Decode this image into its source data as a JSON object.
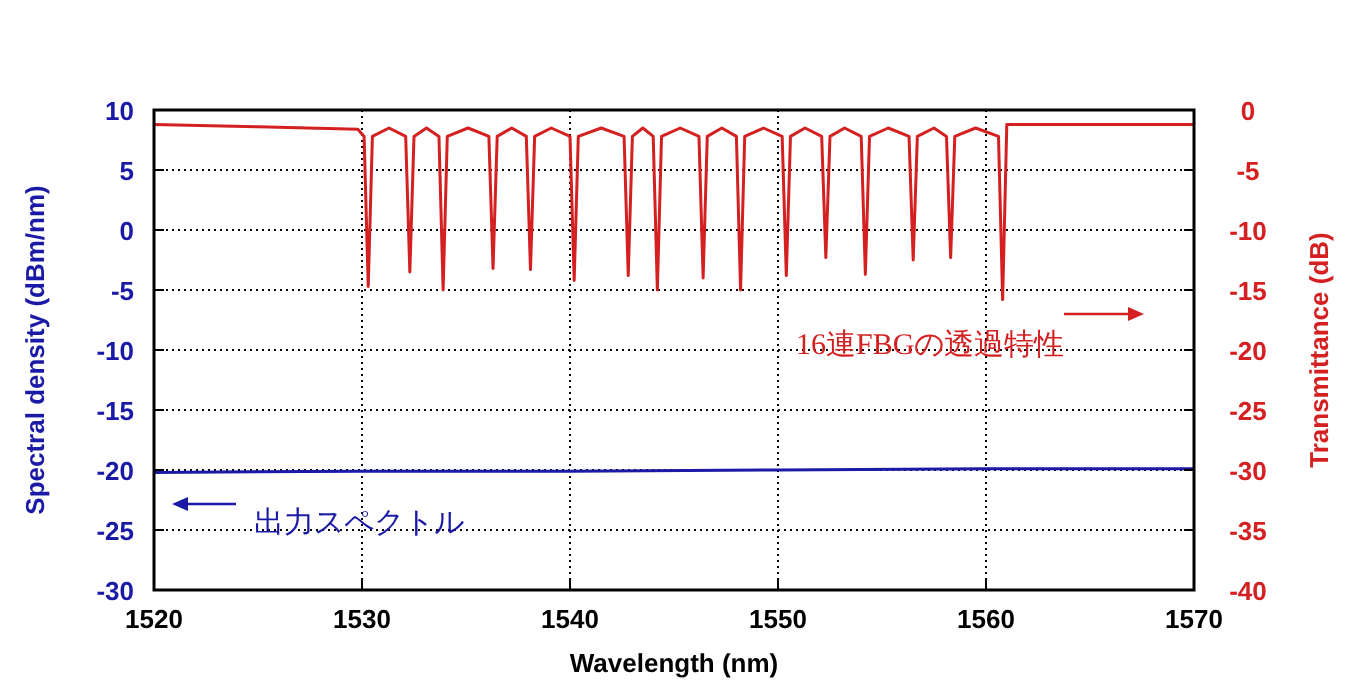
{
  "chart_data": {
    "type": "line",
    "xlabel": "Wavelength (nm)",
    "ylabel": "Spectral density (dBm/nm)",
    "y2label": "Transmittance (dB)",
    "xlim": [
      1520,
      1570
    ],
    "xticks": [
      1520,
      1530,
      1540,
      1550,
      1560,
      1570
    ],
    "ylim": [
      -30,
      10
    ],
    "yticks": [
      -30,
      -25,
      -20,
      -15,
      -10,
      -5,
      0,
      5,
      10
    ],
    "y2lim": [
      -40,
      0
    ],
    "y2ticks": [
      -40,
      -35,
      -30,
      -25,
      -20,
      -15,
      -10,
      -5,
      0
    ],
    "grid": true,
    "line_style": "solid",
    "marker": "none",
    "series": [
      {
        "color": "#1a1aa6",
        "x": [
          1520,
          1530,
          1540,
          1550,
          1560,
          1570
        ],
        "values": [
          -20.2,
          -20.1,
          -20.1,
          -20,
          -19.9,
          -19.9
        ]
      },
      {
        "color": "#d42020",
        "axis": "y2",
        "x": [
          1520,
          1525,
          1529.8,
          1530.1,
          1530.3,
          1530.5,
          1531.3,
          1532.1,
          1532.3,
          1532.5,
          1533.1,
          1533.7,
          1533.9,
          1534.1,
          1535.1,
          1536.1,
          1536.3,
          1536.5,
          1537.2,
          1537.9,
          1538.1,
          1538.3,
          1539.1,
          1540.0,
          1540.2,
          1540.4,
          1541.5,
          1542.6,
          1542.8,
          1543.0,
          1543.5,
          1544.0,
          1544.2,
          1544.4,
          1545.3,
          1546.2,
          1546.4,
          1546.6,
          1547.3,
          1548.0,
          1548.2,
          1548.4,
          1549.3,
          1550.2,
          1550.4,
          1550.6,
          1551.3,
          1552.1,
          1552.3,
          1552.5,
          1553.2,
          1554.0,
          1554.2,
          1554.4,
          1555.3,
          1556.3,
          1556.5,
          1556.7,
          1557.5,
          1558.1,
          1558.3,
          1558.5,
          1559.5,
          1560.6,
          1560.8,
          1561.0,
          1565,
          1570
        ],
        "values": [
          -1.2,
          -1.4,
          -1.6,
          -2.2,
          -14.7,
          -2.2,
          -1.5,
          -2.2,
          -13.5,
          -2.2,
          -1.5,
          -2.2,
          -15,
          -2.2,
          -1.5,
          -2.2,
          -13.2,
          -2.2,
          -1.5,
          -2.2,
          -13.3,
          -2.2,
          -1.5,
          -2.2,
          -14.2,
          -2.2,
          -1.5,
          -2.2,
          -13.8,
          -2.2,
          -1.5,
          -2.2,
          -15,
          -2.2,
          -1.5,
          -2.2,
          -14,
          -2.2,
          -1.5,
          -2.2,
          -15,
          -2.2,
          -1.5,
          -2.2,
          -13.8,
          -2.2,
          -1.5,
          -2.2,
          -12.3,
          -2.2,
          -1.5,
          -2.2,
          -13.7,
          -2.2,
          -1.5,
          -2.2,
          -12.5,
          -2.2,
          -1.5,
          -2.2,
          -12.3,
          -2.2,
          -1.5,
          -2.2,
          -15.8,
          -1.2,
          -1.2,
          -1.2
        ]
      }
    ],
    "annotations": [
      "16連FBGの透過特性",
      "出力スペクトル"
    ]
  }
}
